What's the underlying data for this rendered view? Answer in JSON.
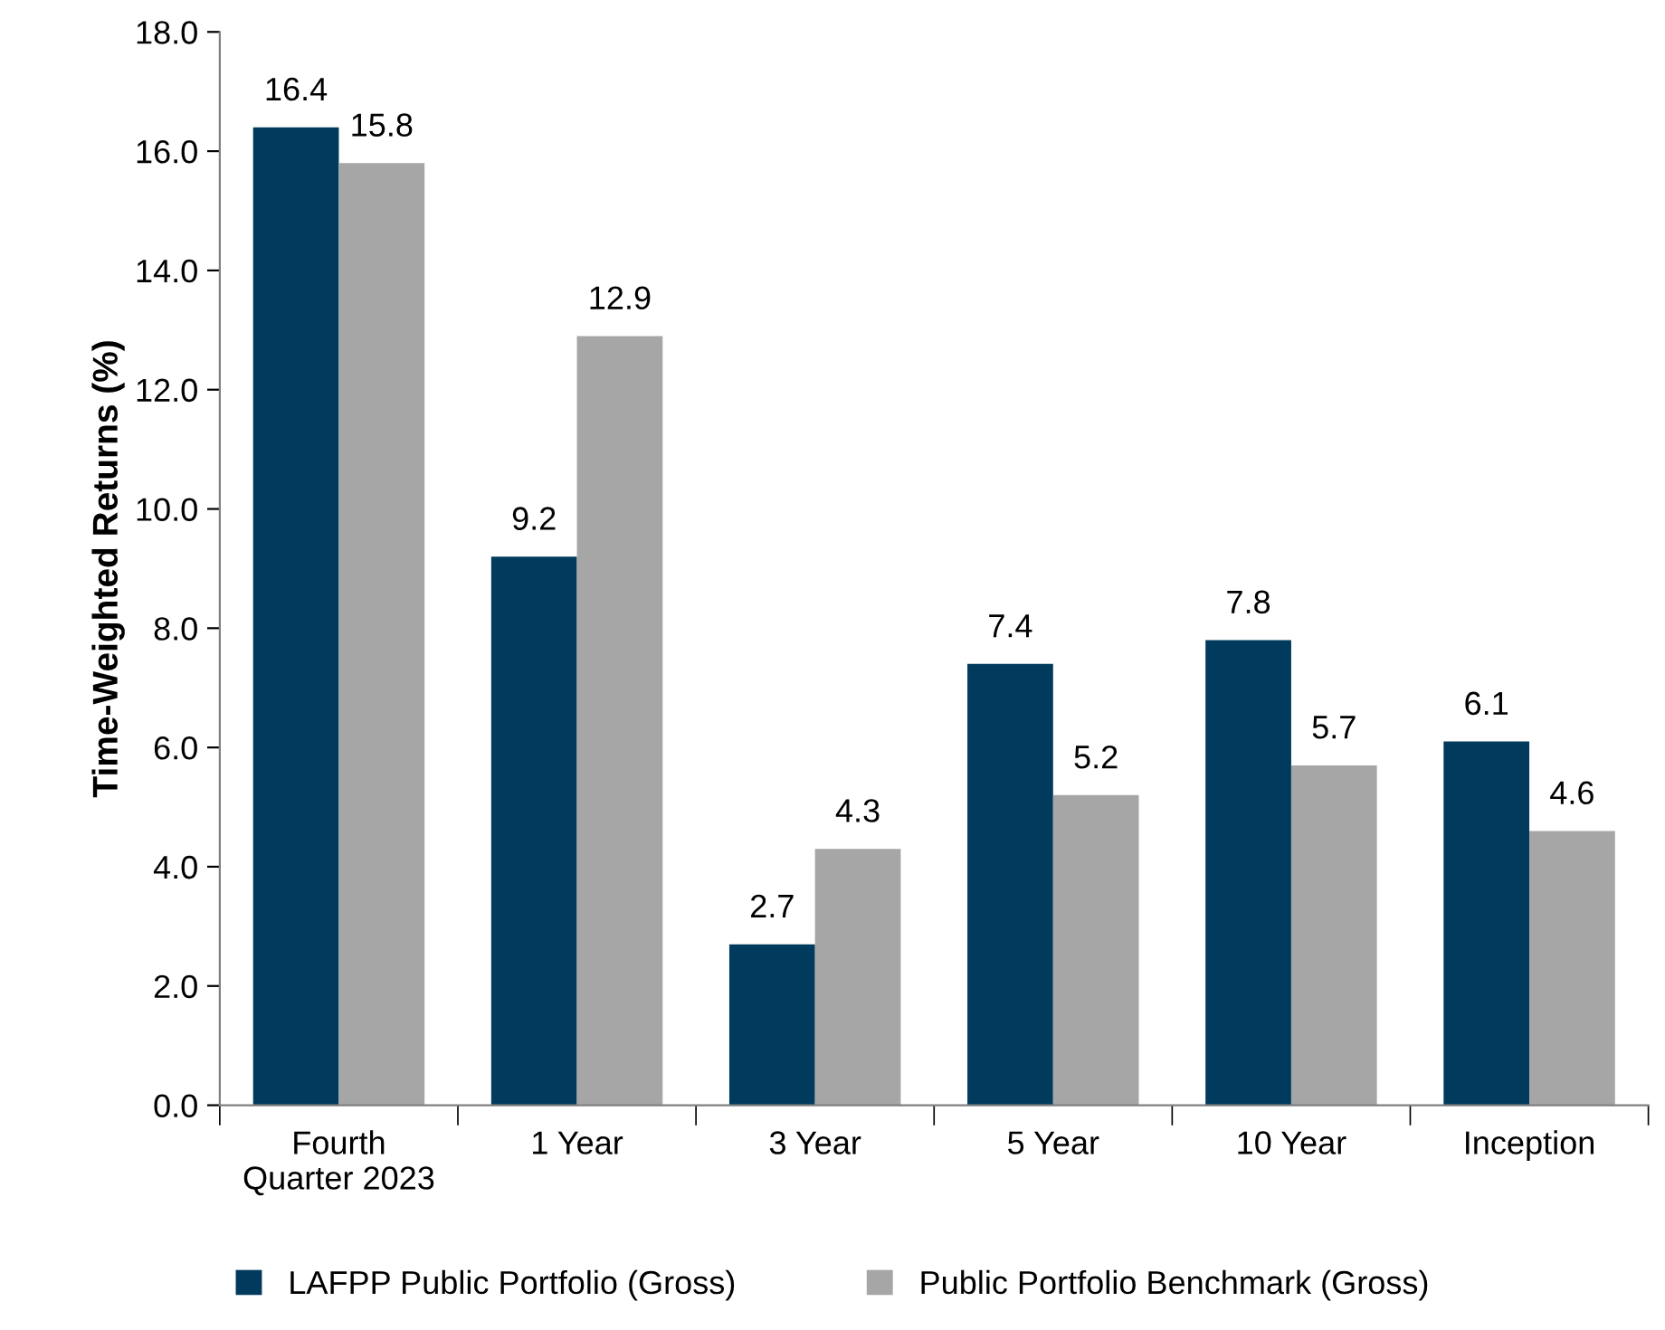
{
  "chart_data": {
    "type": "bar",
    "ylabel": "Time-Weighted Returns (%)",
    "categories": [
      "Fourth\nQuarter 2023",
      "1 Year",
      "3 Year",
      "5 Year",
      "10 Year",
      "Inception"
    ],
    "series": [
      {
        "name": "LAFPP Public Portfolio (Gross)",
        "color": "#003a5c",
        "values": [
          16.4,
          9.2,
          2.7,
          7.4,
          7.8,
          6.1
        ]
      },
      {
        "name": "Public Portfolio Benchmark (Gross)",
        "color": "#a6a6a6",
        "values": [
          15.8,
          12.9,
          4.3,
          5.2,
          5.7,
          4.6
        ]
      }
    ],
    "ylim": [
      0,
      18
    ],
    "yticks": [
      {
        "value": 0,
        "label": "0.0"
      },
      {
        "value": 2,
        "label": "2.0"
      },
      {
        "value": 4,
        "label": "4.0"
      },
      {
        "value": 6,
        "label": "6.0"
      },
      {
        "value": 8,
        "label": "8.0"
      },
      {
        "value": 10,
        "label": "10.0"
      },
      {
        "value": 12,
        "label": "12.0"
      },
      {
        "value": 14,
        "label": "14.0"
      },
      {
        "value": 16,
        "label": "16.0"
      },
      {
        "value": 18,
        "label": "18.0"
      }
    ],
    "data_labels": true,
    "grid": false,
    "legend": "bottom"
  }
}
